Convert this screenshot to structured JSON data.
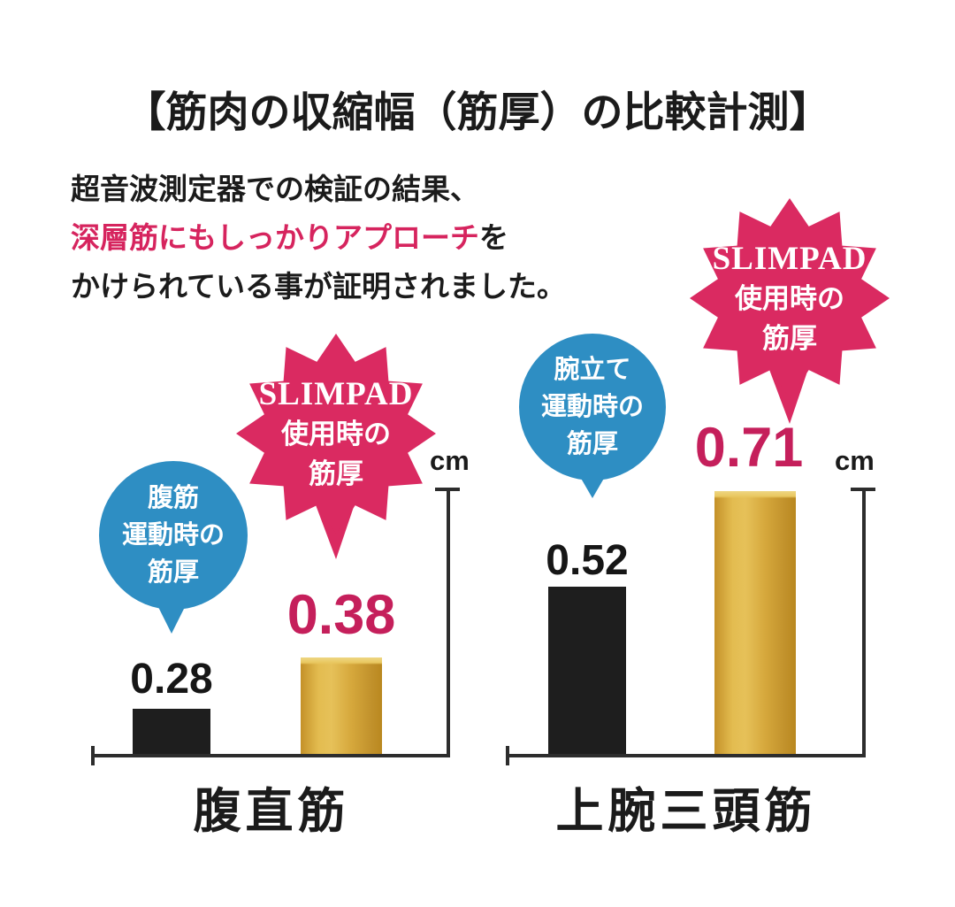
{
  "page": {
    "title": "【筋肉の収縮幅（筋厚）の比較計測】",
    "intro": {
      "line1": "超音波測定器での検証の結果、",
      "line2_highlight": "深層筋にもしっかりアプローチ",
      "line2_suffix": "を",
      "line3": "かけられている事が証明されました。"
    }
  },
  "colors": {
    "highlight_pink": "#d6245e",
    "value_pink": "#c51f5b",
    "starburst_pink": "#da2a61",
    "bubble_blue": "#2e8ec3",
    "bar_black": "#1e1e1e",
    "bar_gold": "#d8a63c",
    "axis": "#2d2d2d"
  },
  "chart_data": {
    "type": "bar",
    "unit": "cm",
    "ylim": [
      0.19,
      0.72
    ],
    "legend_position": "callouts-above-bars",
    "grid": false,
    "groups": [
      {
        "category": "腹直筋",
        "unit_label": "cm",
        "bubble_lines": [
          "腹筋",
          "運動時の",
          "筋厚"
        ],
        "starburst_lines": [
          "SLIMPAD",
          "使用時の",
          "筋厚"
        ],
        "bars": [
          {
            "series": "腹筋運動時の筋厚",
            "label": "0.28",
            "value": 0.28,
            "color_key": "bar_black"
          },
          {
            "series": "SLIMPAD使用時の筋厚",
            "label": "0.38",
            "value": 0.38,
            "color_key": "bar_gold"
          }
        ]
      },
      {
        "category": "上腕三頭筋",
        "unit_label": "cm",
        "bubble_lines": [
          "腕立て",
          "運動時の",
          "筋厚"
        ],
        "starburst_lines": [
          "SLIMPAD",
          "使用時の",
          "筋厚"
        ],
        "bars": [
          {
            "series": "腕立て運動時の筋厚",
            "label": "0.52",
            "value": 0.52,
            "color_key": "bar_black"
          },
          {
            "series": "SLIMPAD使用時の筋厚",
            "label": "0.71",
            "value": 0.71,
            "color_key": "bar_gold"
          }
        ]
      }
    ]
  }
}
